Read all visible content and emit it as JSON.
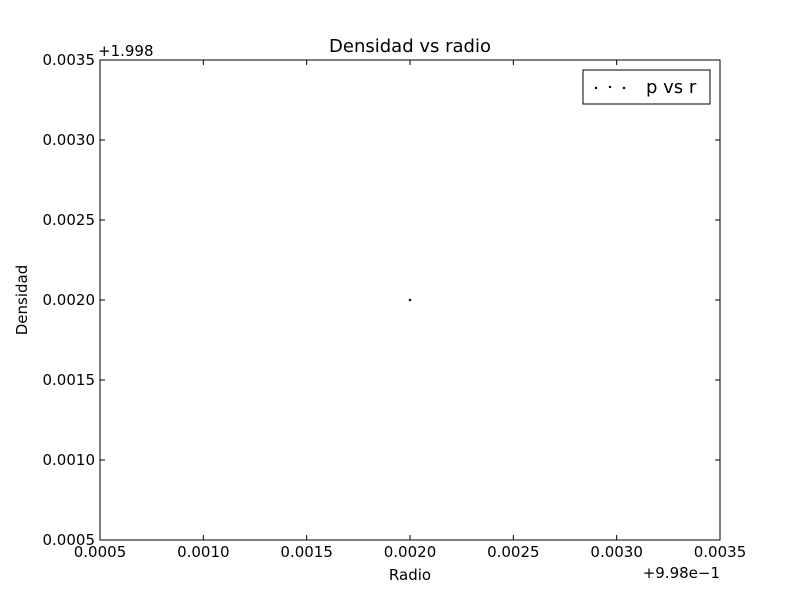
{
  "chart_data": {
    "type": "scatter",
    "title": "Densidad vs radio",
    "xlabel": "Radio",
    "ylabel": "Densidad",
    "x_offset_label": "+9.98e−1",
    "y_offset_label": "+1.998",
    "xlim": [
      0.0005,
      0.0035
    ],
    "ylim": [
      0.0005,
      0.0035
    ],
    "x_ticks": [
      "0.0005",
      "0.0010",
      "0.0015",
      "0.0020",
      "0.0025",
      "0.0030",
      "0.0035"
    ],
    "y_ticks": [
      "0.0005",
      "0.0010",
      "0.0015",
      "0.0020",
      "0.0025",
      "0.0030",
      "0.0035"
    ],
    "grid": false,
    "legend_position": "top-right",
    "series": [
      {
        "name": "p vs r",
        "marker": "point",
        "color": "#000000",
        "points": [
          {
            "x": 0.002,
            "y": 0.002
          }
        ]
      }
    ]
  }
}
